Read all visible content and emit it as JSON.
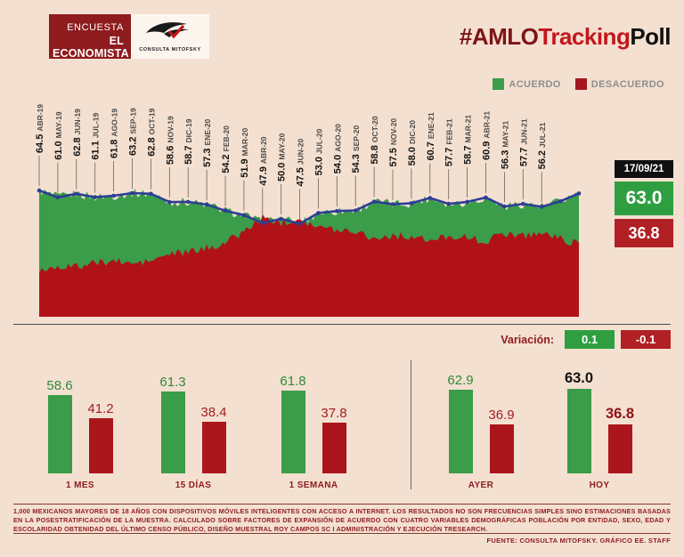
{
  "header": {
    "brand_line1": "ENCUESTA",
    "brand_line2": "EL ECONOMISTA",
    "logo_caption": "CONSULTA MITOFSKY",
    "title_part1": "#AMLO",
    "title_part2": "Tracking",
    "title_part3": "Poll"
  },
  "legend": {
    "acuerdo_label": "ACUERDO",
    "desacuerdo_label": "DESACUERDO"
  },
  "info_box": {
    "date": "17/09/21",
    "acuerdo": "63.0",
    "desacuerdo": "36.8"
  },
  "variacion": {
    "label": "Variación:",
    "acuerdo_change": "0.1",
    "desacuerdo_change": "-0.1"
  },
  "chart_data": [
    {
      "type": "area",
      "name": "amlo-approval-trend",
      "title": "#AMLOTrackingPoll",
      "legend": [
        "ACUERDO",
        "DESACUERDO"
      ],
      "legend_position": "top-right",
      "ylim": [
        0,
        70
      ],
      "months": [
        "ABR-19",
        "MAY-19",
        "JUN-19",
        "JUL-19",
        "AGO-19",
        "SEP-19",
        "OCT-19",
        "NOV-19",
        "DIC-19",
        "ENE-20",
        "FEB-20",
        "MAR-20",
        "ABR-20",
        "MAY-20",
        "JUN-20",
        "JUL-20",
        "AGO-20",
        "SEP-20",
        "OCT-20",
        "NOV-20",
        "DIC-20",
        "ENE-21",
        "FEB-21",
        "MAR-21",
        "ABR-21",
        "MAY-21",
        "JUN-21",
        "JUL-21"
      ],
      "acuerdo": [
        64.5,
        61.0,
        62.8,
        61.1,
        61.8,
        63.2,
        62.8,
        58.6,
        58.7,
        57.3,
        54.2,
        51.9,
        47.9,
        50.0,
        47.5,
        53.0,
        54.0,
        54.3,
        58.8,
        57.5,
        58.0,
        60.7,
        57.7,
        58.7,
        60.9,
        56.3,
        57.7,
        56.2
      ],
      "desacuerdo_approx": [
        23.5,
        26.0,
        25.5,
        27.5,
        28.5,
        27.0,
        28.5,
        32.0,
        33.0,
        35.0,
        38.0,
        43.5,
        50.5,
        48.0,
        50.5,
        45.5,
        44.5,
        44.0,
        40.0,
        41.5,
        41.0,
        38.5,
        41.5,
        40.5,
        38.3,
        42.8,
        41.5,
        43.0
      ],
      "tail_acuerdo": [
        59.0,
        63.0
      ],
      "tail_desacuerdo": [
        40.0,
        36.8
      ],
      "current": {
        "date": "17/09/21",
        "acuerdo": 63.0,
        "desacuerdo": 36.8
      }
    },
    {
      "type": "bar",
      "name": "period-comparison",
      "series": [
        "ACUERDO",
        "DESACUERDO"
      ],
      "groups": [
        {
          "label": "1 MES",
          "acuerdo": 58.6,
          "desacuerdo": 41.2,
          "highlight": false
        },
        {
          "label": "15 DÍAS",
          "acuerdo": 61.3,
          "desacuerdo": 38.4,
          "highlight": false
        },
        {
          "label": "1 SEMANA",
          "acuerdo": 61.8,
          "desacuerdo": 37.8,
          "highlight": false
        },
        {
          "label": "AYER",
          "acuerdo": 62.9,
          "desacuerdo": 36.9,
          "highlight": false
        },
        {
          "label": "HOY",
          "acuerdo": 63.0,
          "desacuerdo": 36.8,
          "highlight": true
        }
      ]
    }
  ],
  "footer": {
    "methodology": "1,000 MEXICANOS MAYORES DE 18 AÑOS CON DISPOSITIVOS MÓVILES INTELIGENTES CON ACCESO A INTERNET. LOS RESULTADOS NO SON FRECUENCIAS SIMPLES SINO ESTIMACIONES BASADAS EN LA POSESTRATIFICACIÓN DE LA MUESTRA. CALCULADO SOBRE FACTORES DE EXPANSIÓN DE ACUERDO CON CUATRO VARIABLES DEMOGRÁFICAS POBLACIÓN POR ENTIDAD, SEXO, EDAD Y ESCOLARIDAD OBTENIDAD DEL ÚLTIMO CENSO PÚBLICO, DISEÑO MUESTRAL ROY CAMPOS SC I ADMINISTRACIÓN Y EJECUCIÓN TRESEARCH.",
    "fuente": "FUENTE: CONSULTA MITOFSKY. GRÁFICO EE. STAFF"
  },
  "colors": {
    "background": "#f4e0d0",
    "maroon": "#8e1b1e",
    "green": "#3b9c49",
    "red": "#b01218",
    "blue_line": "#2e3d96",
    "black_box": "#101010"
  }
}
